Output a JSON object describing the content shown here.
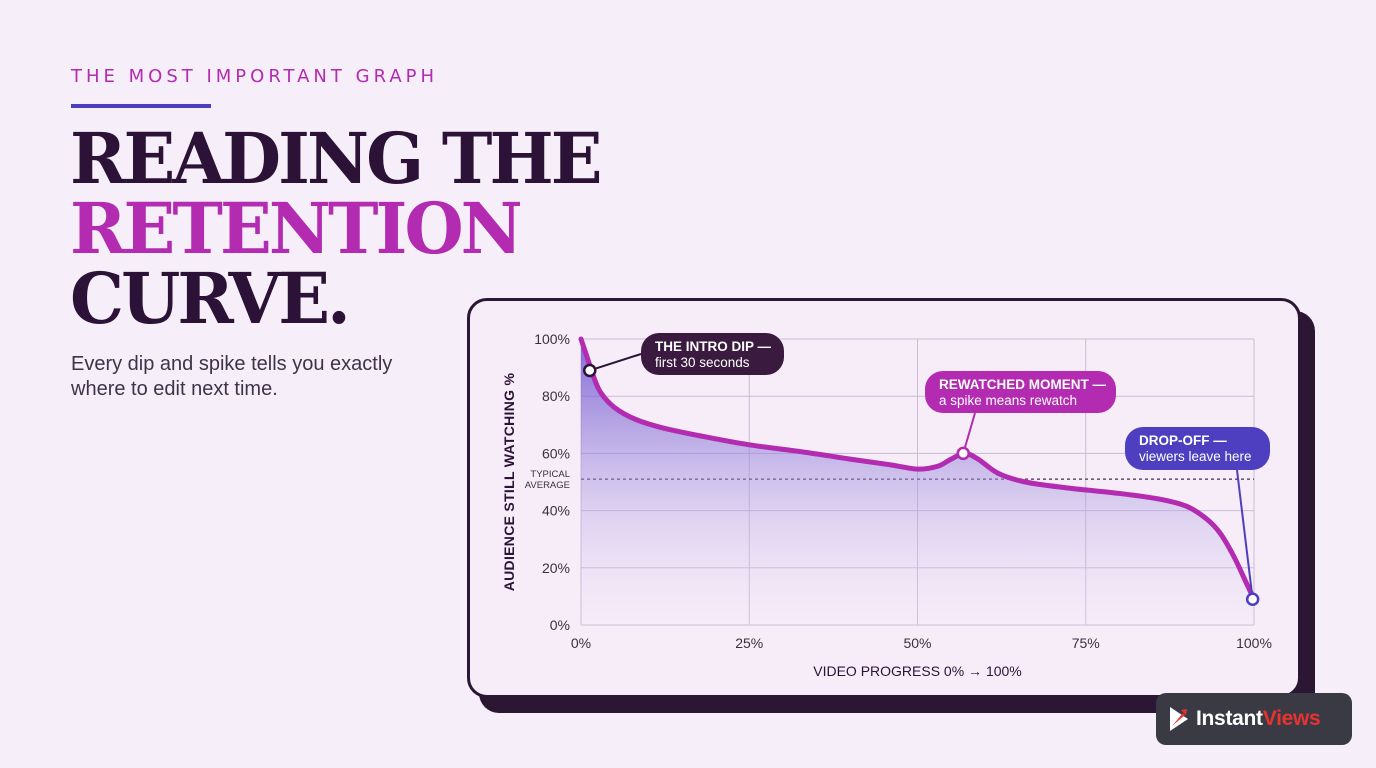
{
  "header": {
    "eyebrow": "THE MOST IMPORTANT GRAPH",
    "title_line1": "READING THE",
    "title_line2": "RETENTION",
    "title_line3": "CURVE.",
    "subtitle": "Every dip and spike tells you exactly where to edit next time."
  },
  "colors": {
    "accent_magenta": "#b22bb0",
    "accent_indigo": "#4d3fbf",
    "dark": "#2c1236",
    "background": "#f6eef8"
  },
  "chart_data": {
    "type": "area",
    "title": "",
    "xlabel": "VIDEO PROGRESS 0% → 100%",
    "ylabel": "AUDIENCE STILL WATCHING %",
    "xlim": [
      0,
      100
    ],
    "ylim": [
      0,
      100
    ],
    "x_ticks": [
      "0%",
      "25%",
      "50%",
      "75%",
      "100%"
    ],
    "y_ticks": [
      "0%",
      "20%",
      "40%",
      "60%",
      "80%",
      "100%"
    ],
    "grid": true,
    "reference_line": {
      "label_line1": "TYPICAL",
      "label_line2": "AVERAGE",
      "y": 51
    },
    "series": [
      {
        "x": [
          0,
          1,
          2,
          3,
          5,
          8,
          12,
          18,
          25,
          33,
          40,
          46,
          50,
          53,
          55,
          57,
          59,
          62,
          66,
          72,
          80,
          86,
          90,
          93,
          95,
          97,
          99,
          100
        ],
        "y": [
          100,
          93,
          86,
          81,
          76,
          72,
          69,
          66,
          63,
          60.5,
          58,
          56,
          54.5,
          55.5,
          58,
          60,
          58,
          53,
          50,
          48,
          46,
          44,
          41.5,
          37,
          32,
          24,
          14,
          9
        ]
      }
    ],
    "annotations": [
      {
        "title": "THE INTRO DIP —",
        "text": "first 30 seconds",
        "x": 1.3,
        "y": 89
      },
      {
        "title": "REWATCHED MOMENT —",
        "text": "a spike means rewatch",
        "x": 56.8,
        "y": 60
      },
      {
        "title": "DROP-OFF —",
        "text": "viewers leave here",
        "x": 99.8,
        "y": 9
      }
    ]
  },
  "brand": {
    "name_part1": "Instant",
    "name_part2": "Views",
    "icon": "play-arrow-logo-icon"
  }
}
